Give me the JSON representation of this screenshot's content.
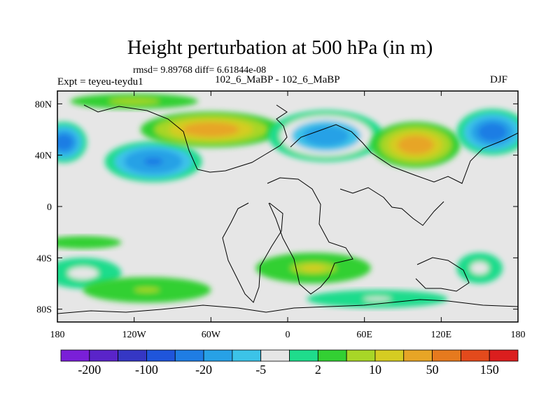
{
  "chart_data": {
    "type": "heatmap",
    "title": "Height perturbation at 500 hPa (in m)",
    "subtitle": "rmsd= 9.89768 diff= 6.61844e-08",
    "left_label": "Expt = teyeu-teydu1",
    "center_label": "102_6_MaBP - 102_6_MaBP",
    "right_label": "DJF",
    "x_range": [
      -180,
      180
    ],
    "y_range": [
      -90,
      90
    ],
    "x_ticks": [
      {
        "value": -180,
        "label": "180"
      },
      {
        "value": -120,
        "label": "120W"
      },
      {
        "value": -60,
        "label": "60W"
      },
      {
        "value": 0,
        "label": "0"
      },
      {
        "value": 60,
        "label": "60E"
      },
      {
        "value": 120,
        "label": "120E"
      },
      {
        "value": 180,
        "label": "180"
      }
    ],
    "y_ticks": [
      {
        "value": 80,
        "label": "80N"
      },
      {
        "value": 40,
        "label": "40N"
      },
      {
        "value": 0,
        "label": "0"
      },
      {
        "value": -40,
        "label": "40S"
      },
      {
        "value": -80,
        "label": "80S"
      }
    ],
    "colorbar": {
      "colors": [
        "#7a1fd8",
        "#5a24c9",
        "#3537c4",
        "#1f55db",
        "#1f7de4",
        "#27a1e6",
        "#3cc3e8",
        "#e6e6e6",
        "#1fdc8c",
        "#33d033",
        "#a8d627",
        "#d5cc22",
        "#e7a526",
        "#e67a1e",
        "#e34a1c",
        "#db1e1e"
      ],
      "labels": [
        {
          "boundary": 1,
          "text": "-200"
        },
        {
          "boundary": 3,
          "text": "-100"
        },
        {
          "boundary": 5,
          "text": "-20"
        },
        {
          "boundary": 7,
          "text": "-5"
        },
        {
          "boundary": 9,
          "text": "2"
        },
        {
          "boundary": 11,
          "text": "10"
        },
        {
          "boundary": 13,
          "text": "50"
        },
        {
          "boundary": 15,
          "text": "150"
        }
      ]
    },
    "features": [
      {
        "name": "north-pacific-low",
        "lon": -175,
        "lat": 50,
        "value": -100,
        "rx": 18,
        "ry": 16
      },
      {
        "name": "north-pacific-low-2",
        "lon": -105,
        "lat": 35,
        "value": -60,
        "rx": 38,
        "ry": 16
      },
      {
        "name": "north-america-high",
        "lon": -60,
        "lat": 60,
        "value": 35,
        "rx": 55,
        "ry": 14
      },
      {
        "name": "eurasia-low",
        "lon": 30,
        "lat": 55,
        "value": -40,
        "rx": 45,
        "ry": 20
      },
      {
        "name": "siberia-high",
        "lon": 100,
        "lat": 48,
        "value": 45,
        "rx": 35,
        "ry": 18
      },
      {
        "name": "east-asia-low",
        "lon": 160,
        "lat": 58,
        "value": -80,
        "rx": 28,
        "ry": 18
      },
      {
        "name": "arctic-high",
        "lon": -120,
        "lat": 82,
        "value": 8,
        "rx": 50,
        "ry": 6
      },
      {
        "name": "south-atlantic-high",
        "lon": 20,
        "lat": -48,
        "value": 10,
        "rx": 45,
        "ry": 12
      },
      {
        "name": "south-pacific-low",
        "lon": -160,
        "lat": -52,
        "value": -8,
        "rx": 30,
        "ry": 12
      },
      {
        "name": "southern-ocean-high",
        "lon": -110,
        "lat": -65,
        "value": 5,
        "rx": 50,
        "ry": 10
      },
      {
        "name": "tropical-high",
        "lon": -160,
        "lat": -28,
        "value": 4,
        "rx": 30,
        "ry": 5
      },
      {
        "name": "indian-ocean-low",
        "lon": 70,
        "lat": -72,
        "value": -6,
        "rx": 55,
        "ry": 7
      },
      {
        "name": "australia-low",
        "lon": 150,
        "lat": -48,
        "value": -10,
        "rx": 18,
        "ry": 12
      }
    ]
  }
}
